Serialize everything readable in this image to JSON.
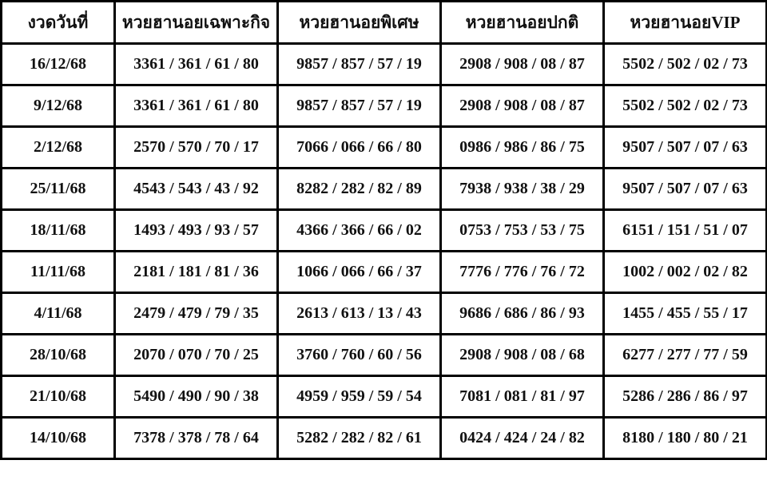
{
  "table": {
    "headers": [
      "งวดวันที่",
      "หวยฮานอยเฉพาะกิจ",
      "หวยฮานอยพิเศษ",
      "หวยฮานอยปกติ",
      "หวยฮานอยVIP"
    ],
    "rows": [
      [
        "16/12/68",
        "3361 / 361 / 61 / 80",
        "9857 / 857 / 57 / 19",
        "2908 / 908 / 08 / 87",
        "5502 / 502 / 02 / 73"
      ],
      [
        "9/12/68",
        "3361 / 361 / 61 / 80",
        "9857 / 857 / 57 / 19",
        "2908 / 908 / 08 / 87",
        "5502 / 502 / 02 / 73"
      ],
      [
        "2/12/68",
        "2570 / 570 / 70 / 17",
        "7066 / 066 / 66 / 80",
        "0986 / 986 / 86 / 75",
        "9507 / 507 / 07 / 63"
      ],
      [
        "25/11/68",
        "4543 / 543 / 43 / 92",
        "8282 / 282 / 82 / 89",
        "7938 / 938 / 38 / 29",
        "9507 / 507 / 07 / 63"
      ],
      [
        "18/11/68",
        "1493 / 493 / 93 / 57",
        "4366 / 366 / 66 / 02",
        "0753 / 753 / 53 / 75",
        "6151 / 151 / 51 / 07"
      ],
      [
        "11/11/68",
        "2181 / 181 / 81 / 36",
        "1066 / 066 / 66 / 37",
        "7776 / 776 / 76 / 72",
        "1002 / 002 / 02 / 82"
      ],
      [
        "4/11/68",
        "2479 / 479 / 79 / 35",
        "2613 / 613 / 13 / 43",
        "9686 / 686 / 86 / 93",
        "1455 / 455 / 55 / 17"
      ],
      [
        "28/10/68",
        "2070 / 070 / 70 / 25",
        "3760 / 760 / 60 / 56",
        "2908 / 908 / 08 / 68",
        "6277 / 277 / 77 / 59"
      ],
      [
        "21/10/68",
        "5490 / 490 / 90 / 38",
        "4959 / 959 / 59 / 54",
        "7081 / 081 / 81 / 97",
        "5286 / 286 / 86 / 97"
      ],
      [
        "14/10/68",
        "7378 / 378 / 78 / 64",
        "5282 / 282 / 82 / 61",
        "0424 / 424 / 24 / 82",
        "8180 / 180 / 80 / 21"
      ]
    ]
  }
}
